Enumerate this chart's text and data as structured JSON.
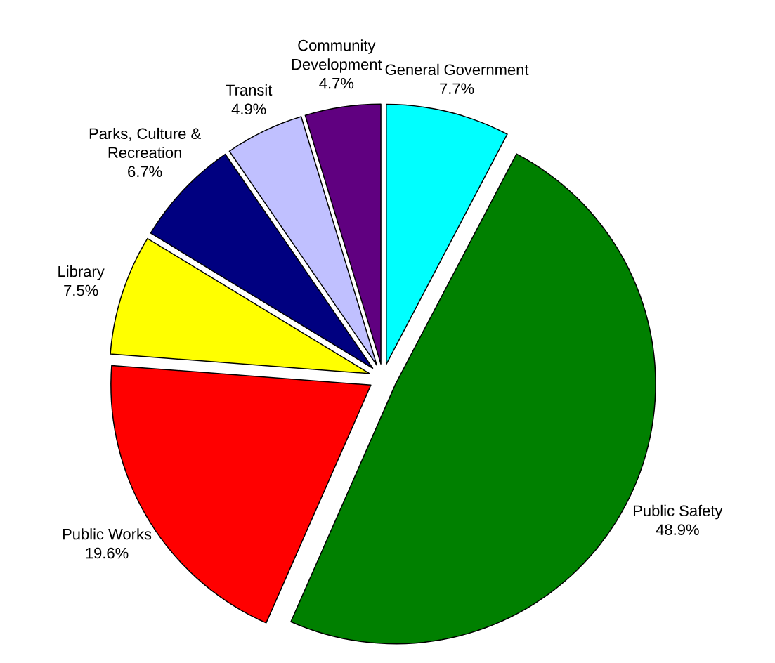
{
  "chart_data": {
    "type": "pie",
    "categories": [
      "General Government",
      "Public Safety",
      "Public Works",
      "Library",
      "Parks, Culture & Recreation",
      "Transit",
      "Community Development"
    ],
    "values": [
      7.7,
      48.9,
      19.6,
      7.5,
      6.7,
      4.9,
      4.7
    ],
    "value_labels": [
      "7.7%",
      "48.9%",
      "19.6%",
      "7.5%",
      "6.7%",
      "4.9%",
      "4.7%"
    ],
    "colors": [
      "#00ffff",
      "#008000",
      "#ff0000",
      "#ffff00",
      "#000080",
      "#c0c0ff",
      "#600080"
    ]
  }
}
